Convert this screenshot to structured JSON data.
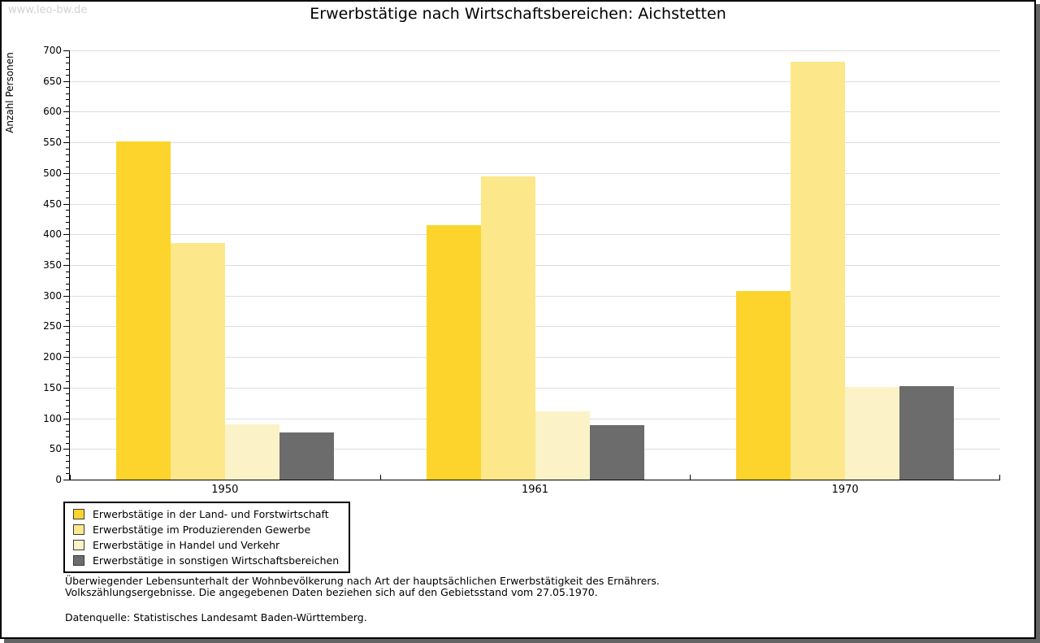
{
  "page": {
    "watermark": "www.leo-bw.de",
    "border_color": "#000000",
    "shadow_color": "#646464",
    "background": "#ffffff"
  },
  "chart_data": {
    "type": "bar",
    "title": "Erwerbstätige nach Wirtschaftsbereichen: Aichstetten",
    "xlabel": "",
    "ylabel": "Anzahl Personen",
    "categories": [
      "1950",
      "1961",
      "1970"
    ],
    "series": [
      {
        "name": "Erwerbstätige in der Land- und Forstwirtschaft",
        "color": "#fcd42c",
        "values": [
          552,
          415,
          307
        ]
      },
      {
        "name": "Erwerbstätige im Produzierenden Gewerbe",
        "color": "#fce88a",
        "values": [
          386,
          494,
          682
        ]
      },
      {
        "name": "Erwerbstätige in Handel und Verkehr",
        "color": "#fbf3c7",
        "values": [
          90,
          112,
          151
        ]
      },
      {
        "name": "Erwerbstätige in sonstigen Wirtschaftsbereichen",
        "color": "#6c6c6c",
        "values": [
          77,
          89,
          153
        ]
      }
    ],
    "ylim": [
      0,
      700
    ],
    "ytick_step": 50,
    "y_minor_step": 10,
    "grid": true,
    "gridline_color": "#dddddd",
    "legend_position": "bottom-left"
  },
  "footnotes": {
    "line1": "Überwiegender Lebensunterhalt der Wohnbevölkerung nach Art der hauptsächlichen Erwerbstätigkeit des Ernährers.",
    "line2": "Volkszählungsergebnisse. Die angegebenen Daten beziehen sich auf den Gebietsstand vom 27.05.1970.",
    "source": "Datenquelle: Statistisches Landesamt Baden-Württemberg."
  }
}
